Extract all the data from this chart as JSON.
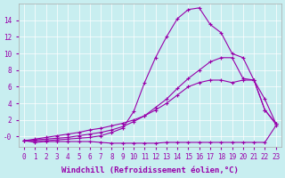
{
  "xlabel": "Windchill (Refroidissement éolien,°C)",
  "bg_color": "#c8eef0",
  "line_color": "#9900aa",
  "x_values": [
    0,
    1,
    2,
    3,
    4,
    5,
    6,
    7,
    8,
    9,
    10,
    11,
    12,
    13,
    14,
    15,
    16,
    17,
    18,
    19,
    20,
    21,
    22,
    23
  ],
  "line1": [
    -0.5,
    -0.7,
    -0.6,
    -0.6,
    -0.6,
    -0.6,
    -0.6,
    -0.7,
    -0.8,
    -0.8,
    -0.8,
    -0.8,
    -0.8,
    -0.7,
    -0.7,
    -0.7,
    -0.7,
    -0.7,
    -0.7,
    -0.7,
    -0.7,
    -0.7,
    -0.7,
    1.3
  ],
  "line2": [
    -0.5,
    -0.5,
    -0.5,
    -0.4,
    -0.3,
    -0.2,
    -0.1,
    0.1,
    0.5,
    1.0,
    3.0,
    6.5,
    9.5,
    12.0,
    14.2,
    15.3,
    15.5,
    13.5,
    12.5,
    10.0,
    9.5,
    6.8,
    3.2,
    1.5
  ],
  "line3": [
    -0.5,
    -0.4,
    -0.3,
    -0.2,
    -0.1,
    0.1,
    0.3,
    0.5,
    0.8,
    1.2,
    1.8,
    2.5,
    3.5,
    4.5,
    5.8,
    7.0,
    8.0,
    9.0,
    9.5,
    9.5,
    7.0,
    6.8,
    4.5,
    1.6
  ],
  "line4": [
    -0.5,
    -0.3,
    -0.1,
    0.1,
    0.3,
    0.5,
    0.8,
    1.0,
    1.3,
    1.6,
    2.0,
    2.5,
    3.2,
    4.0,
    5.0,
    6.0,
    6.5,
    6.8,
    6.8,
    6.5,
    6.8,
    6.8,
    3.2,
    1.6
  ],
  "xlim": [
    -0.5,
    23.5
  ],
  "ylim": [
    -1.2,
    16
  ],
  "yticks": [
    0,
    2,
    4,
    6,
    8,
    10,
    12,
    14
  ],
  "ytick_labels": [
    "-0",
    "2",
    "4",
    "6",
    "8",
    "10",
    "12",
    "14"
  ],
  "xticks": [
    0,
    1,
    2,
    3,
    4,
    5,
    6,
    7,
    8,
    9,
    10,
    11,
    12,
    13,
    14,
    15,
    16,
    17,
    18,
    19,
    20,
    21,
    22,
    23
  ],
  "marker": "+",
  "markersize": 3,
  "linewidth": 0.8,
  "xlabel_fontsize": 6.5,
  "tick_fontsize": 5.5
}
